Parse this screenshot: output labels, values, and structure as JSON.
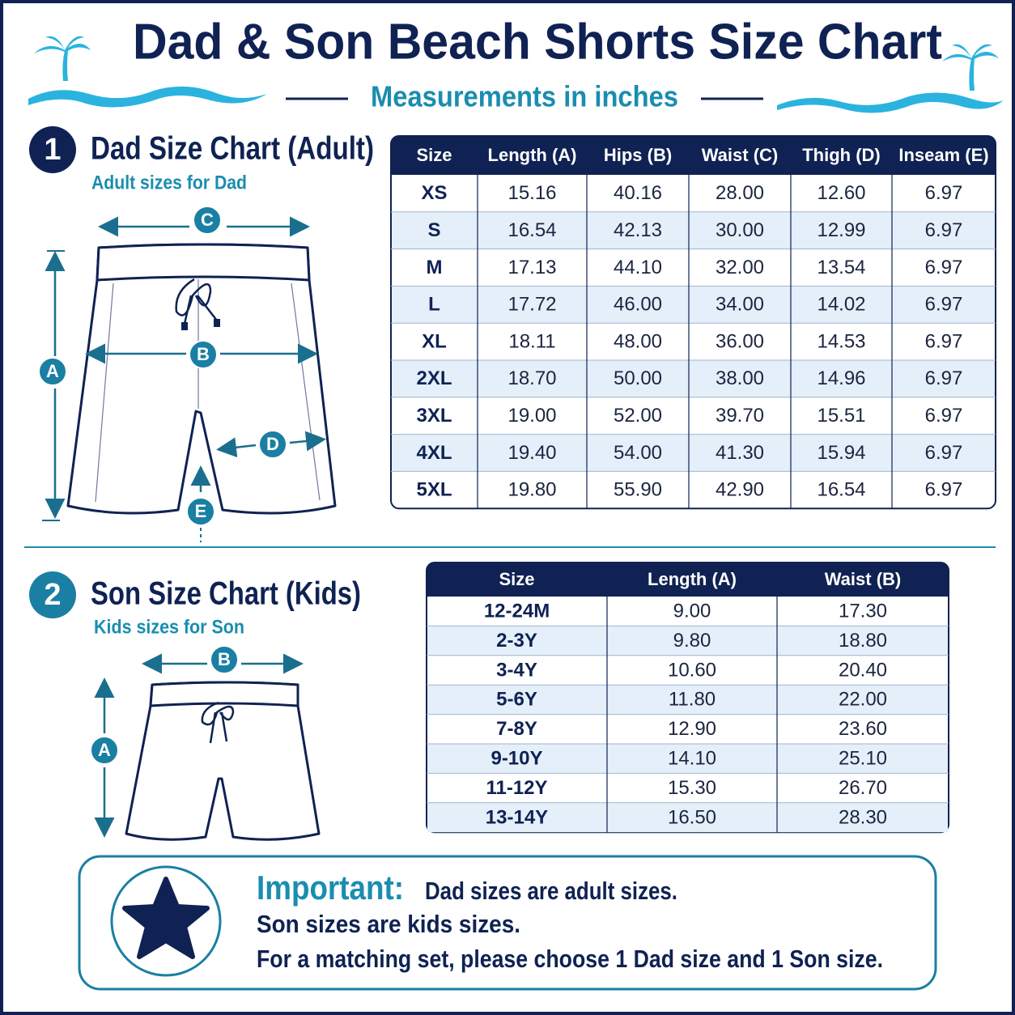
{
  "header": {
    "title": "Dad & Son Beach Shorts Size Chart",
    "subtitle": "Measurements in inches"
  },
  "dad": {
    "number": "1",
    "title": "Dad Size Chart (Adult)",
    "subtitle": "Adult sizes for Dad",
    "diagram_labels": [
      "C",
      "A",
      "B",
      "D",
      "E"
    ],
    "table": {
      "headers": [
        "Size",
        "Length (A)",
        "Hips (B)",
        "Waist (C)",
        "Thigh (D)",
        "Inseam (E)"
      ],
      "rows": [
        [
          "XS",
          "15.16",
          "40.16",
          "28.00",
          "12.60",
          "6.97"
        ],
        [
          "S",
          "16.54",
          "42.13",
          "30.00",
          "12.99",
          "6.97"
        ],
        [
          "M",
          "17.13",
          "44.10",
          "32.00",
          "13.54",
          "6.97"
        ],
        [
          "L",
          "17.72",
          "46.00",
          "34.00",
          "14.02",
          "6.97"
        ],
        [
          "XL",
          "18.11",
          "48.00",
          "36.00",
          "14.53",
          "6.97"
        ],
        [
          "2XL",
          "18.70",
          "50.00",
          "38.00",
          "14.96",
          "6.97"
        ],
        [
          "3XL",
          "19.00",
          "52.00",
          "39.70",
          "15.51",
          "6.97"
        ],
        [
          "4XL",
          "19.40",
          "54.00",
          "41.30",
          "15.94",
          "6.97"
        ],
        [
          "5XL",
          "19.80",
          "55.90",
          "42.90",
          "16.54",
          "6.97"
        ]
      ]
    }
  },
  "son": {
    "number": "2",
    "title": "Son Size Chart (Kids)",
    "subtitle": "Kids sizes for Son",
    "diagram_labels": [
      "B",
      "A"
    ],
    "table": {
      "headers": [
        "Size",
        "Length (A)",
        "Waist (B)"
      ],
      "rows": [
        [
          "12-24M",
          "9.00",
          "17.30"
        ],
        [
          "2-3Y",
          "9.80",
          "18.80"
        ],
        [
          "3-4Y",
          "10.60",
          "20.40"
        ],
        [
          "5-6Y",
          "11.80",
          "22.00"
        ],
        [
          "7-8Y",
          "12.90",
          "23.60"
        ],
        [
          "9-10Y",
          "14.10",
          "25.10"
        ],
        [
          "11-12Y",
          "15.30",
          "26.70"
        ],
        [
          "13-14Y",
          "16.50",
          "28.30"
        ]
      ]
    }
  },
  "note": {
    "label": "Important:",
    "lines": [
      "Dad sizes are adult sizes.",
      "Son sizes are kids sizes.",
      "For a matching set, please choose 1 Dad size and 1 Son size."
    ]
  }
}
